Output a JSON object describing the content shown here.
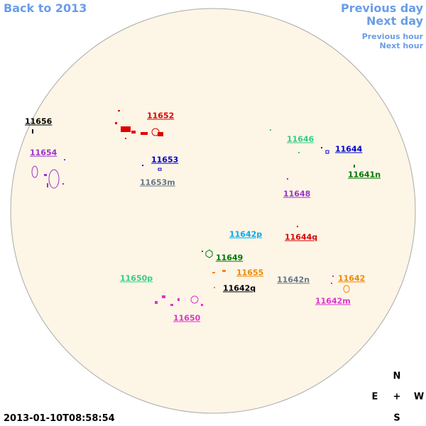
{
  "navigation": {
    "back": "Back to 2013",
    "previous_day": "Previous day",
    "next_day": "Next day",
    "previous_hour": "Previous hour",
    "next_hour": "Next hour"
  },
  "regions": [
    {
      "label": "11656",
      "color": "#000000"
    },
    {
      "label": "11652",
      "color": "#dd0000"
    },
    {
      "label": "11646",
      "color": "#33cc88"
    },
    {
      "label": "11654",
      "color": "#9933cc"
    },
    {
      "label": "11653",
      "color": "#0000cc"
    },
    {
      "label": "11644",
      "color": "#0000cc"
    },
    {
      "label": "11641n",
      "color": "#007700"
    },
    {
      "label": "11653m",
      "color": "#667788"
    },
    {
      "label": "11648",
      "color": "#9933cc"
    },
    {
      "label": "11642p",
      "color": "#00aaee"
    },
    {
      "label": "11644q",
      "color": "#dd0000"
    },
    {
      "label": "11649",
      "color": "#007700"
    },
    {
      "label": "11655",
      "color": "#ee8800"
    },
    {
      "label": "11650p",
      "color": "#33cc88"
    },
    {
      "label": "11642n",
      "color": "#667788"
    },
    {
      "label": "11642",
      "color": "#ee8800"
    },
    {
      "label": "11642q",
      "color": "#000000"
    },
    {
      "label": "11642m",
      "color": "#dd33cc"
    },
    {
      "label": "11650",
      "color": "#dd33cc"
    }
  ],
  "compass": {
    "north": "N",
    "east": "E",
    "center": "+",
    "west": "W",
    "south": "S"
  },
  "timestamp": "2013-01-10T08:58:54"
}
